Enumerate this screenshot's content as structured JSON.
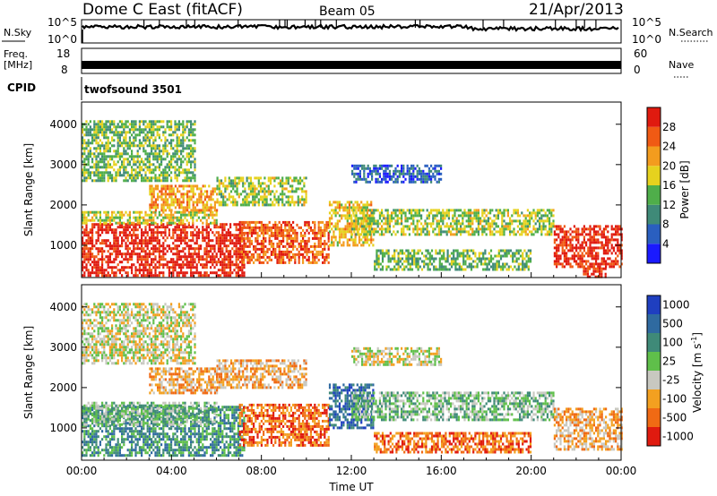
{
  "header": {
    "station": "Dome C East (fitACF)",
    "beam": "Beam 05",
    "date": "21/Apr/2013"
  },
  "noise_panel": {
    "left_label": "N.Sky",
    "right_label": "N.Search",
    "left_ticks": [
      "10^5",
      "10^0"
    ],
    "right_ticks": [
      "10^5",
      "10^0"
    ]
  },
  "freq_panel": {
    "left_label_line1": "Freq.",
    "left_label_line2": "[MHz]",
    "right_label": "Nave",
    "left_ticks": [
      "18",
      "8"
    ],
    "right_ticks": [
      "60",
      "0"
    ]
  },
  "cpid": {
    "label": "CPID",
    "value": "twofsound 3501"
  },
  "chart_data": [
    {
      "type": "heatmap",
      "name": "power",
      "ylabel": "Slant Range [km]",
      "xlabel": "",
      "x_ticks": [
        "00:00",
        "04:00",
        "08:00",
        "12:00",
        "16:00",
        "20:00",
        "00:00"
      ],
      "x_range_hours": [
        0,
        24
      ],
      "y_ticks": [
        1000,
        2000,
        3000,
        4000
      ],
      "ylim": [
        200,
        4550
      ],
      "colorbar": {
        "label": "Power [dB]",
        "tick_labels": [
          "4",
          "8",
          "12",
          "16",
          "20",
          "24",
          "28"
        ],
        "tick_values": [
          4,
          8,
          12,
          16,
          20,
          24,
          28
        ],
        "range": [
          0,
          32
        ],
        "colors": [
          "#1a1aff",
          "#2a5fc0",
          "#3f8a78",
          "#4fae4a",
          "#e6d21e",
          "#f39c1e",
          "#f05a14",
          "#e01a0f"
        ]
      },
      "echo_regions": [
        {
          "t0": 0,
          "t1": 7.2,
          "r0": 250,
          "r1": 1550,
          "v": 30
        },
        {
          "t0": 0,
          "t1": 6,
          "r0": 1550,
          "r1": 1850,
          "v": 18
        },
        {
          "t0": 3,
          "t1": 6,
          "r0": 1900,
          "r1": 2500,
          "v": 22
        },
        {
          "t0": 0,
          "t1": 5,
          "r0": 2600,
          "r1": 4100,
          "v": 14
        },
        {
          "t0": 6,
          "t1": 10,
          "r0": 2000,
          "r1": 2700,
          "v": 16
        },
        {
          "t0": 7,
          "t1": 11,
          "r0": 600,
          "r1": 1600,
          "v": 26
        },
        {
          "t0": 11,
          "t1": 13,
          "r0": 1000,
          "r1": 2100,
          "v": 20
        },
        {
          "t0": 12,
          "t1": 21,
          "r0": 1300,
          "r1": 1900,
          "v": 16
        },
        {
          "t0": 13,
          "t1": 20,
          "r0": 400,
          "r1": 900,
          "v": 14
        },
        {
          "t0": 12,
          "t1": 16,
          "r0": 2600,
          "r1": 3000,
          "v": 6
        },
        {
          "t0": 21,
          "t1": 24,
          "r0": 500,
          "r1": 1500,
          "v": 30
        },
        {
          "t0": 22.3,
          "t1": 23.3,
          "r0": 250,
          "r1": 450,
          "v": 29
        }
      ]
    },
    {
      "type": "heatmap",
      "name": "velocity",
      "ylabel": "Slant Range [km]",
      "xlabel": "Time UT",
      "x_ticks": [
        "00:00",
        "04:00",
        "08:00",
        "12:00",
        "16:00",
        "20:00",
        "00:00"
      ],
      "x_range_hours": [
        0,
        24
      ],
      "y_ticks": [
        1000,
        2000,
        3000,
        4000
      ],
      "ylim": [
        200,
        4550
      ],
      "colorbar": {
        "label": "Velocity [m s",
        "label_sup": "-1",
        "label_end": "]",
        "tick_labels": [
          "1000",
          "500",
          "100",
          "25",
          "-25",
          "-100",
          "-500",
          "-1000"
        ],
        "colors": [
          "#1f3fc0",
          "#2f6aa0",
          "#3f8a78",
          "#5fbf4a",
          "#c8c8c0",
          "#f3a020",
          "#f06a14",
          "#e01a0f"
        ]
      },
      "echo_regions": [
        {
          "t0": 0,
          "t1": 7.2,
          "r0": 300,
          "r1": 1550,
          "v": 2
        },
        {
          "t0": 0,
          "t1": 6,
          "r0": 1100,
          "r1": 1650,
          "v": 3
        },
        {
          "t0": 3,
          "t1": 6,
          "r0": 1900,
          "r1": 2500,
          "v": 5
        },
        {
          "t0": 0,
          "t1": 5,
          "r0": 2600,
          "r1": 4100,
          "v": 4
        },
        {
          "t0": 6,
          "t1": 10,
          "r0": 2000,
          "r1": 2700,
          "v": 5
        },
        {
          "t0": 7,
          "t1": 11,
          "r0": 600,
          "r1": 1600,
          "v": 6
        },
        {
          "t0": 11,
          "t1": 13,
          "r0": 1000,
          "r1": 2100,
          "v": 1
        },
        {
          "t0": 12,
          "t1": 21,
          "r0": 1200,
          "r1": 1900,
          "v": 3
        },
        {
          "t0": 13,
          "t1": 20,
          "r0": 400,
          "r1": 900,
          "v": 6
        },
        {
          "t0": 12,
          "t1": 16,
          "r0": 2600,
          "r1": 3000,
          "v": 4
        },
        {
          "t0": 21,
          "t1": 24,
          "r0": 500,
          "r1": 1500,
          "v": 5
        }
      ]
    }
  ]
}
